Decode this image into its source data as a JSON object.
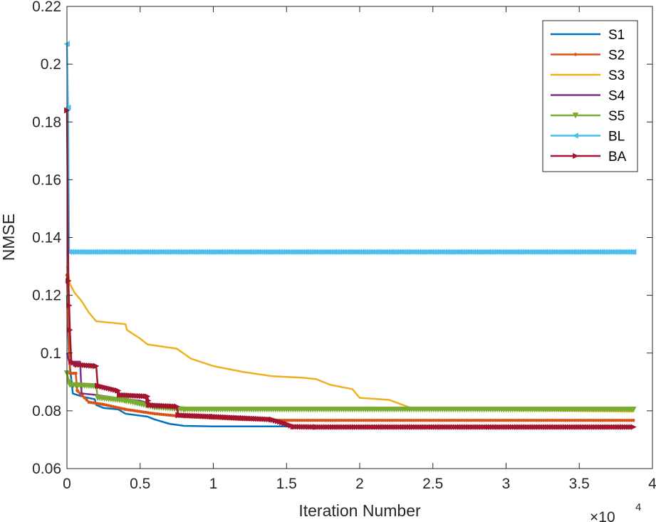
{
  "chart_data": {
    "type": "line",
    "title": "",
    "xlabel": "Iteration Number",
    "ylabel": "NMSE",
    "x_exponent_label": "×10",
    "x_exponent_power": "4",
    "xlim": [
      0,
      40000
    ],
    "ylim": [
      0.06,
      0.22
    ],
    "x_ticks": [
      0,
      5000,
      10000,
      15000,
      20000,
      25000,
      30000,
      35000,
      40000
    ],
    "x_tick_labels": [
      "0",
      "0.5",
      "1",
      "1.5",
      "2",
      "2.5",
      "3",
      "3.5",
      "4"
    ],
    "y_ticks": [
      0.06,
      0.08,
      0.1,
      0.12,
      0.14,
      0.16,
      0.18,
      0.2,
      0.22
    ],
    "y_tick_labels": [
      "0.06",
      "0.08",
      "0.1",
      "0.12",
      "0.14",
      "0.16",
      "0.18",
      "0.2",
      "0.22"
    ],
    "grid": false,
    "legend_position": "top-right",
    "series": [
      {
        "name": "S1",
        "color": "#0072BD",
        "marker": "none",
        "points": [
          [
            0,
            0.12
          ],
          [
            150,
            0.098
          ],
          [
            400,
            0.086
          ],
          [
            1000,
            0.085
          ],
          [
            1900,
            0.084
          ],
          [
            2000,
            0.082
          ],
          [
            2500,
            0.081
          ],
          [
            3500,
            0.0805
          ],
          [
            4000,
            0.079
          ],
          [
            5500,
            0.078
          ],
          [
            6000,
            0.077
          ],
          [
            7000,
            0.0755
          ],
          [
            8000,
            0.0748
          ],
          [
            10000,
            0.0746
          ],
          [
            38700,
            0.0746
          ]
        ]
      },
      {
        "name": "S2",
        "color": "#D95319",
        "marker": "dot",
        "points": [
          [
            0,
            0.127
          ],
          [
            200,
            0.093
          ],
          [
            600,
            0.093
          ],
          [
            700,
            0.087
          ],
          [
            1500,
            0.083
          ],
          [
            2500,
            0.0822
          ],
          [
            4000,
            0.0805
          ],
          [
            6000,
            0.079
          ],
          [
            8000,
            0.078
          ],
          [
            10000,
            0.0775
          ],
          [
            12000,
            0.077
          ],
          [
            15000,
            0.0767
          ],
          [
            38700,
            0.0767
          ]
        ]
      },
      {
        "name": "S3",
        "color": "#EDB120",
        "marker": "none",
        "points": [
          [
            0,
            0.13
          ],
          [
            200,
            0.124
          ],
          [
            500,
            0.121
          ],
          [
            1000,
            0.118
          ],
          [
            1500,
            0.114
          ],
          [
            2000,
            0.111
          ],
          [
            4000,
            0.11
          ],
          [
            4100,
            0.108
          ],
          [
            5000,
            0.105
          ],
          [
            5500,
            0.103
          ],
          [
            7500,
            0.1015
          ],
          [
            8500,
            0.098
          ],
          [
            10000,
            0.0955
          ],
          [
            12000,
            0.0935
          ],
          [
            14000,
            0.092
          ],
          [
            16000,
            0.0915
          ],
          [
            17000,
            0.091
          ],
          [
            18000,
            0.089
          ],
          [
            19500,
            0.0875
          ],
          [
            20000,
            0.0845
          ],
          [
            22000,
            0.0838
          ],
          [
            23500,
            0.081
          ],
          [
            25000,
            0.0805
          ],
          [
            38700,
            0.0798
          ]
        ]
      },
      {
        "name": "S4",
        "color": "#7E2F8E",
        "marker": "none",
        "points": [
          [
            0,
            0.1
          ],
          [
            150,
            0.097
          ],
          [
            900,
            0.097
          ],
          [
            1000,
            0.086
          ],
          [
            2000,
            0.0855
          ],
          [
            4000,
            0.084
          ],
          [
            5000,
            0.0835
          ],
          [
            6000,
            0.082
          ],
          [
            8000,
            0.081
          ],
          [
            38700,
            0.081
          ]
        ]
      },
      {
        "name": "S5",
        "color": "#77AC30",
        "marker": "triangle-down",
        "points": [
          [
            0,
            0.093
          ],
          [
            200,
            0.089
          ],
          [
            2000,
            0.0885
          ],
          [
            2100,
            0.0845
          ],
          [
            4000,
            0.0835
          ],
          [
            6000,
            0.0812
          ],
          [
            8000,
            0.0805
          ],
          [
            38700,
            0.0805
          ]
        ]
      },
      {
        "name": "BL",
        "color": "#4DBEEE",
        "marker": "triangle-left",
        "points": [
          [
            0,
            0.207
          ],
          [
            80,
            0.185
          ],
          [
            150,
            0.135
          ],
          [
            38700,
            0.135
          ]
        ]
      },
      {
        "name": "BA",
        "color": "#A2142F",
        "marker": "triangle-right",
        "points": [
          [
            0,
            0.184
          ],
          [
            100,
            0.125
          ],
          [
            200,
            0.108
          ],
          [
            300,
            0.097
          ],
          [
            700,
            0.096
          ],
          [
            2000,
            0.0955
          ],
          [
            2100,
            0.0887
          ],
          [
            3500,
            0.087
          ],
          [
            3600,
            0.0855
          ],
          [
            5500,
            0.085
          ],
          [
            5600,
            0.082
          ],
          [
            7500,
            0.0815
          ],
          [
            7600,
            0.0785
          ],
          [
            10000,
            0.078
          ],
          [
            12000,
            0.0775
          ],
          [
            14000,
            0.077
          ],
          [
            15000,
            0.0755
          ],
          [
            15500,
            0.0745
          ],
          [
            17000,
            0.0744
          ],
          [
            38700,
            0.0744
          ]
        ]
      }
    ]
  }
}
